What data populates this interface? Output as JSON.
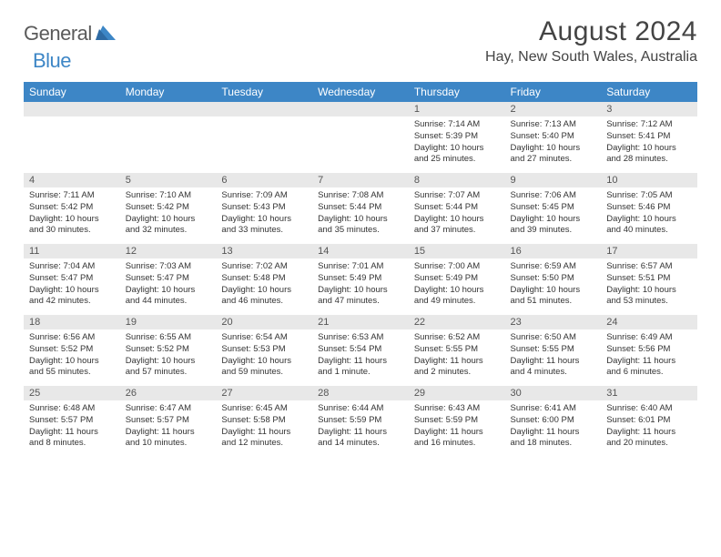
{
  "logo": {
    "word1": "General",
    "word2": "Blue"
  },
  "title": "August 2024",
  "location": "Hay, New South Wales, Australia",
  "colors": {
    "header_bg": "#3d86c6",
    "header_text": "#ffffff",
    "daynum_bg": "#e8e8e8",
    "border_top": "#2a5a8a",
    "text": "#333333",
    "logo_gray": "#5a5a5a",
    "logo_blue": "#3d86c6"
  },
  "weekdays": [
    "Sunday",
    "Monday",
    "Tuesday",
    "Wednesday",
    "Thursday",
    "Friday",
    "Saturday"
  ],
  "weeks": [
    [
      null,
      null,
      null,
      null,
      {
        "n": "1",
        "sr": "7:14 AM",
        "ss": "5:39 PM",
        "dl": "10 hours and 25 minutes."
      },
      {
        "n": "2",
        "sr": "7:13 AM",
        "ss": "5:40 PM",
        "dl": "10 hours and 27 minutes."
      },
      {
        "n": "3",
        "sr": "7:12 AM",
        "ss": "5:41 PM",
        "dl": "10 hours and 28 minutes."
      }
    ],
    [
      {
        "n": "4",
        "sr": "7:11 AM",
        "ss": "5:42 PM",
        "dl": "10 hours and 30 minutes."
      },
      {
        "n": "5",
        "sr": "7:10 AM",
        "ss": "5:42 PM",
        "dl": "10 hours and 32 minutes."
      },
      {
        "n": "6",
        "sr": "7:09 AM",
        "ss": "5:43 PM",
        "dl": "10 hours and 33 minutes."
      },
      {
        "n": "7",
        "sr": "7:08 AM",
        "ss": "5:44 PM",
        "dl": "10 hours and 35 minutes."
      },
      {
        "n": "8",
        "sr": "7:07 AM",
        "ss": "5:44 PM",
        "dl": "10 hours and 37 minutes."
      },
      {
        "n": "9",
        "sr": "7:06 AM",
        "ss": "5:45 PM",
        "dl": "10 hours and 39 minutes."
      },
      {
        "n": "10",
        "sr": "7:05 AM",
        "ss": "5:46 PM",
        "dl": "10 hours and 40 minutes."
      }
    ],
    [
      {
        "n": "11",
        "sr": "7:04 AM",
        "ss": "5:47 PM",
        "dl": "10 hours and 42 minutes."
      },
      {
        "n": "12",
        "sr": "7:03 AM",
        "ss": "5:47 PM",
        "dl": "10 hours and 44 minutes."
      },
      {
        "n": "13",
        "sr": "7:02 AM",
        "ss": "5:48 PM",
        "dl": "10 hours and 46 minutes."
      },
      {
        "n": "14",
        "sr": "7:01 AM",
        "ss": "5:49 PM",
        "dl": "10 hours and 47 minutes."
      },
      {
        "n": "15",
        "sr": "7:00 AM",
        "ss": "5:49 PM",
        "dl": "10 hours and 49 minutes."
      },
      {
        "n": "16",
        "sr": "6:59 AM",
        "ss": "5:50 PM",
        "dl": "10 hours and 51 minutes."
      },
      {
        "n": "17",
        "sr": "6:57 AM",
        "ss": "5:51 PM",
        "dl": "10 hours and 53 minutes."
      }
    ],
    [
      {
        "n": "18",
        "sr": "6:56 AM",
        "ss": "5:52 PM",
        "dl": "10 hours and 55 minutes."
      },
      {
        "n": "19",
        "sr": "6:55 AM",
        "ss": "5:52 PM",
        "dl": "10 hours and 57 minutes."
      },
      {
        "n": "20",
        "sr": "6:54 AM",
        "ss": "5:53 PM",
        "dl": "10 hours and 59 minutes."
      },
      {
        "n": "21",
        "sr": "6:53 AM",
        "ss": "5:54 PM",
        "dl": "11 hours and 1 minute."
      },
      {
        "n": "22",
        "sr": "6:52 AM",
        "ss": "5:55 PM",
        "dl": "11 hours and 2 minutes."
      },
      {
        "n": "23",
        "sr": "6:50 AM",
        "ss": "5:55 PM",
        "dl": "11 hours and 4 minutes."
      },
      {
        "n": "24",
        "sr": "6:49 AM",
        "ss": "5:56 PM",
        "dl": "11 hours and 6 minutes."
      }
    ],
    [
      {
        "n": "25",
        "sr": "6:48 AM",
        "ss": "5:57 PM",
        "dl": "11 hours and 8 minutes."
      },
      {
        "n": "26",
        "sr": "6:47 AM",
        "ss": "5:57 PM",
        "dl": "11 hours and 10 minutes."
      },
      {
        "n": "27",
        "sr": "6:45 AM",
        "ss": "5:58 PM",
        "dl": "11 hours and 12 minutes."
      },
      {
        "n": "28",
        "sr": "6:44 AM",
        "ss": "5:59 PM",
        "dl": "11 hours and 14 minutes."
      },
      {
        "n": "29",
        "sr": "6:43 AM",
        "ss": "5:59 PM",
        "dl": "11 hours and 16 minutes."
      },
      {
        "n": "30",
        "sr": "6:41 AM",
        "ss": "6:00 PM",
        "dl": "11 hours and 18 minutes."
      },
      {
        "n": "31",
        "sr": "6:40 AM",
        "ss": "6:01 PM",
        "dl": "11 hours and 20 minutes."
      }
    ]
  ],
  "labels": {
    "sunrise": "Sunrise:",
    "sunset": "Sunset:",
    "daylight": "Daylight:"
  }
}
